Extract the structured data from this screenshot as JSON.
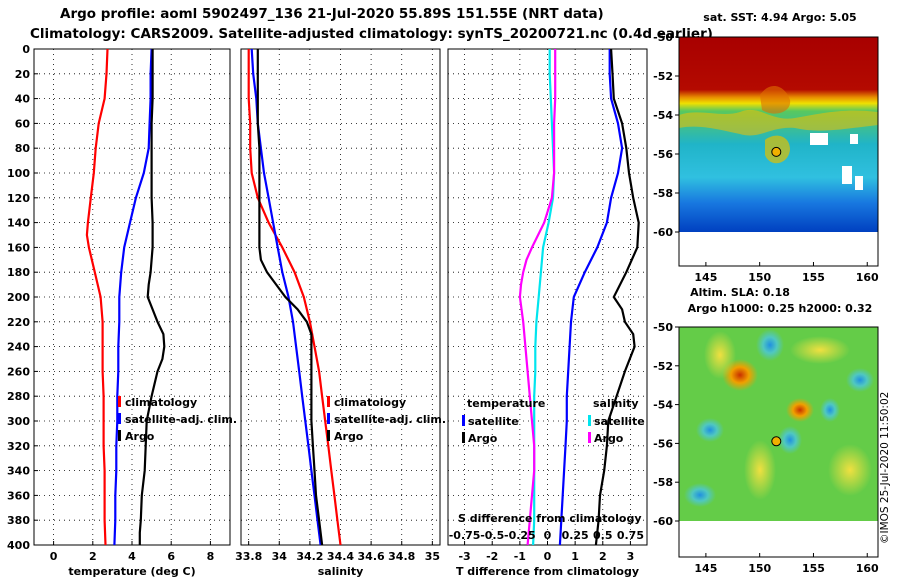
{
  "header": {
    "line1": "Argo profile: aoml 5902497_136 21-Jul-2020 55.89S 151.55E (NRT data)",
    "line2": "Climatology: CARS2009. Satellite-adjusted climatology: synTS_20200721.nc (0.4d earlier)"
  },
  "maps": {
    "sst_title": "sat. SST: 4.94 Argo: 5.05",
    "sla_title1": "Altim. SLA: 0.18",
    "sla_title2": "Argo h1000: 0.25 h2000: 0.32",
    "float_lon": 151.55,
    "float_lat": -55.89,
    "lat_ticks": [
      -50,
      -52,
      -54,
      -56,
      -58,
      -60
    ],
    "lon_ticks": [
      145,
      150,
      155,
      160
    ],
    "lon_range": [
      142.5,
      161
    ],
    "lat_range": [
      -50,
      -60
    ]
  },
  "stamp": "©IMOS 25-Jul-2020 11:50:02",
  "colors": {
    "climatology": "#ff0000",
    "satellite": "#0000ff",
    "argo": "#000000",
    "salinity_satellite": "#00e5ee",
    "salinity_argo": "#ff00ff"
  },
  "chart_data": [
    {
      "type": "line",
      "name": "temperature",
      "xlabel": "temperature (deg C)",
      "ylabel": "",
      "xlim": [
        -1,
        9
      ],
      "ylim": [
        400,
        0
      ],
      "x_ticks": [
        0,
        2,
        4,
        6,
        8
      ],
      "y_ticks": [
        0,
        20,
        40,
        60,
        80,
        100,
        120,
        140,
        160,
        180,
        200,
        220,
        240,
        260,
        280,
        300,
        320,
        340,
        360,
        380,
        400
      ],
      "legend": [
        "climatology",
        "satellite-adj. clim.",
        "Argo"
      ],
      "series": [
        {
          "name": "climatology",
          "color": "#ff0000",
          "depth": [
            0,
            20,
            40,
            60,
            80,
            100,
            120,
            140,
            150,
            160,
            180,
            200,
            220,
            240,
            260,
            280,
            300,
            320,
            340,
            360,
            380,
            400
          ],
          "values": [
            2.75,
            2.7,
            2.6,
            2.3,
            2.15,
            2.05,
            1.9,
            1.75,
            1.7,
            1.8,
            2.1,
            2.4,
            2.5,
            2.5,
            2.5,
            2.55,
            2.55,
            2.55,
            2.6,
            2.6,
            2.6,
            2.65
          ]
        },
        {
          "name": "satellite-adj. clim.",
          "color": "#0000ff",
          "depth": [
            0,
            20,
            40,
            60,
            80,
            100,
            120,
            140,
            160,
            180,
            200,
            220,
            240,
            260,
            280,
            300,
            320,
            340,
            360,
            380,
            400
          ],
          "values": [
            5.0,
            4.95,
            4.95,
            4.9,
            4.85,
            4.6,
            4.2,
            3.9,
            3.6,
            3.45,
            3.35,
            3.35,
            3.3,
            3.3,
            3.25,
            3.25,
            3.2,
            3.2,
            3.15,
            3.15,
            3.1
          ]
        },
        {
          "name": "Argo",
          "color": "#000000",
          "depth": [
            0,
            20,
            40,
            60,
            80,
            100,
            120,
            140,
            160,
            180,
            190,
            200,
            210,
            220,
            230,
            240,
            250,
            260,
            280,
            300,
            320,
            340,
            360,
            380,
            390,
            400
          ],
          "values": [
            5.05,
            5.05,
            5.05,
            5.0,
            5.0,
            5.0,
            5.0,
            5.05,
            5.05,
            4.95,
            4.85,
            4.8,
            5.05,
            5.3,
            5.6,
            5.65,
            5.55,
            5.3,
            5.0,
            4.75,
            4.7,
            4.65,
            4.5,
            4.45,
            4.4,
            4.4
          ]
        }
      ]
    },
    {
      "type": "line",
      "name": "salinity",
      "xlabel": "salinity",
      "ylabel": "",
      "xlim": [
        33.75,
        35.05
      ],
      "ylim": [
        400,
        0
      ],
      "x_ticks": [
        33.8,
        34,
        34.2,
        34.4,
        34.6,
        34.8,
        35
      ],
      "legend": [
        "climatology",
        "satellite-adj. clim.",
        "Argo"
      ],
      "series": [
        {
          "name": "climatology",
          "color": "#ff0000",
          "depth": [
            0,
            20,
            40,
            60,
            80,
            100,
            120,
            140,
            160,
            180,
            200,
            220,
            240,
            260,
            280,
            300,
            320,
            340,
            360,
            380,
            400
          ],
          "values": [
            33.8,
            33.8,
            33.8,
            33.81,
            33.81,
            33.82,
            33.86,
            33.93,
            34.02,
            34.1,
            34.16,
            34.2,
            34.23,
            34.26,
            34.28,
            34.3,
            34.32,
            34.34,
            34.36,
            34.38,
            34.4
          ]
        },
        {
          "name": "satellite-adj. clim.",
          "color": "#0000ff",
          "depth": [
            0,
            20,
            40,
            60,
            80,
            100,
            120,
            140,
            160,
            180,
            200,
            220,
            240,
            260,
            280,
            300,
            320,
            340,
            360,
            380,
            400
          ],
          "values": [
            33.82,
            33.83,
            33.85,
            33.86,
            33.88,
            33.9,
            33.93,
            33.96,
            33.99,
            34.02,
            34.06,
            34.09,
            34.11,
            34.13,
            34.15,
            34.17,
            34.19,
            34.21,
            34.23,
            34.25,
            34.27
          ]
        },
        {
          "name": "Argo",
          "color": "#000000",
          "depth": [
            0,
            20,
            40,
            60,
            80,
            100,
            120,
            140,
            160,
            170,
            180,
            190,
            200,
            210,
            220,
            230,
            240,
            260,
            280,
            300,
            320,
            340,
            360,
            380,
            400
          ],
          "values": [
            33.86,
            33.86,
            33.86,
            33.86,
            33.87,
            33.87,
            33.87,
            33.87,
            33.87,
            33.88,
            33.92,
            33.98,
            34.04,
            34.12,
            34.18,
            34.21,
            34.21,
            34.21,
            34.21,
            34.21,
            34.22,
            34.23,
            34.24,
            34.26,
            34.28
          ]
        }
      ]
    },
    {
      "type": "line",
      "name": "difference",
      "xlabel": "T difference from climatology",
      "xlabel2": "S difference from climatology",
      "ylabel": "",
      "xlim": [
        -3.6,
        3.6
      ],
      "x2lim": [
        -0.9,
        0.9
      ],
      "ylim": [
        400,
        0
      ],
      "x_ticks": [
        -3,
        -2,
        -1,
        0,
        1,
        2,
        3
      ],
      "x2_ticks": [
        "-0.75",
        "-0.5",
        "-0.25",
        "0",
        "0.25",
        "0.5",
        "0.75"
      ],
      "legend_t_title": "temperature",
      "legend_s_title": "salinity",
      "legend_t": [
        "satellite",
        "Argo"
      ],
      "legend_s": [
        "satellite",
        "Argo"
      ],
      "series": [
        {
          "name": "T satellite",
          "color": "#0000ff",
          "axis": "T",
          "depth": [
            0,
            20,
            40,
            60,
            80,
            100,
            120,
            140,
            160,
            180,
            200,
            220,
            240,
            260,
            280,
            300,
            320,
            340,
            360,
            380,
            400
          ],
          "values": [
            2.25,
            2.25,
            2.3,
            2.55,
            2.7,
            2.55,
            2.3,
            2.15,
            1.8,
            1.35,
            0.95,
            0.85,
            0.8,
            0.75,
            0.7,
            0.7,
            0.65,
            0.6,
            0.55,
            0.5,
            0.45
          ]
        },
        {
          "name": "T Argo",
          "color": "#000000",
          "axis": "T",
          "depth": [
            0,
            20,
            40,
            60,
            80,
            100,
            120,
            140,
            160,
            180,
            200,
            210,
            220,
            230,
            240,
            260,
            280,
            300,
            320,
            340,
            360,
            380,
            400
          ],
          "values": [
            2.3,
            2.35,
            2.4,
            2.7,
            2.85,
            2.95,
            3.1,
            3.3,
            3.25,
            2.85,
            2.4,
            2.7,
            2.8,
            3.1,
            3.15,
            2.8,
            2.5,
            2.2,
            2.15,
            2.05,
            1.9,
            1.85,
            1.75
          ]
        },
        {
          "name": "S satellite",
          "color": "#00e5ee",
          "axis": "S",
          "depth": [
            0,
            20,
            40,
            60,
            80,
            100,
            120,
            140,
            160,
            180,
            200,
            220,
            240,
            260,
            280,
            300,
            320,
            340,
            360,
            380,
            400
          ],
          "values": [
            0.02,
            0.02,
            0.03,
            0.04,
            0.05,
            0.06,
            0.05,
            0.01,
            -0.04,
            -0.06,
            -0.08,
            -0.1,
            -0.11,
            -0.11,
            -0.12,
            -0.12,
            -0.12,
            -0.12,
            -0.12,
            -0.12,
            -0.13
          ]
        },
        {
          "name": "S Argo",
          "color": "#ff00ff",
          "axis": "S",
          "depth": [
            0,
            20,
            40,
            60,
            80,
            100,
            120,
            140,
            160,
            170,
            180,
            190,
            200,
            220,
            240,
            260,
            280,
            300,
            320,
            340,
            360,
            380,
            400
          ],
          "values": [
            0.07,
            0.07,
            0.07,
            0.06,
            0.06,
            0.06,
            0.04,
            -0.03,
            -0.14,
            -0.19,
            -0.22,
            -0.24,
            -0.25,
            -0.22,
            -0.2,
            -0.18,
            -0.16,
            -0.14,
            -0.12,
            -0.12,
            -0.14,
            -0.16,
            -0.18
          ]
        }
      ]
    }
  ]
}
